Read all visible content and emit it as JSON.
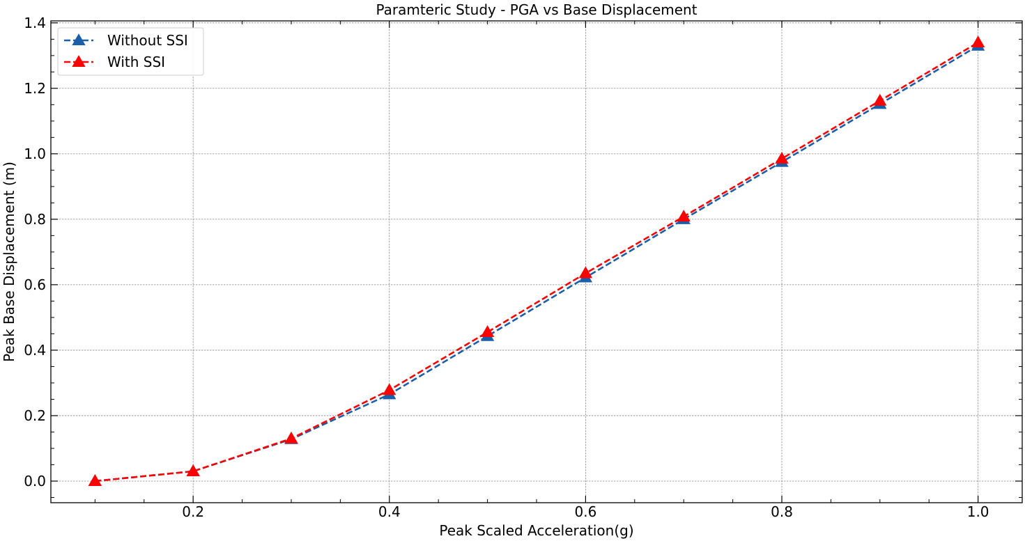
{
  "chart_data": {
    "type": "line",
    "title": "Paramteric Study - PGA vs Base Displacement",
    "xlabel": "Peak Scaled Acceleration(g)",
    "ylabel": "Peak Base Displacement (m)",
    "x": [
      0.1,
      0.2,
      0.3,
      0.4,
      0.5,
      0.6,
      0.7,
      0.8,
      0.9,
      1.0
    ],
    "series": [
      {
        "name": "Without SSI",
        "color": "#1a5fa8",
        "marker": "triangle",
        "linestyle": "dashed",
        "values": [
          0.0,
          0.03,
          0.128,
          0.265,
          0.443,
          0.622,
          0.8,
          0.975,
          1.152,
          1.33
        ]
      },
      {
        "name": "With SSI",
        "color": "#ff0000",
        "marker": "triangle",
        "linestyle": "dashed",
        "values": [
          0.0,
          0.03,
          0.13,
          0.278,
          0.455,
          0.635,
          0.808,
          0.985,
          1.162,
          1.34
        ]
      }
    ],
    "xlim": [
      0.055,
      1.045
    ],
    "ylim": [
      -0.066,
      1.406
    ],
    "xticks": [
      0.2,
      0.4,
      0.6,
      0.8,
      1.0
    ],
    "xtick_labels": [
      "0.2",
      "0.4",
      "0.6",
      "0.8",
      "1.0"
    ],
    "yticks": [
      0.0,
      0.2,
      0.4,
      0.6,
      0.8,
      1.0,
      1.2,
      1.4
    ],
    "ytick_labels": [
      "0.0",
      "0.2",
      "0.4",
      "0.6",
      "0.8",
      "1.0",
      "1.2",
      "1.4"
    ],
    "grid": true,
    "legend_position": "top-left"
  }
}
